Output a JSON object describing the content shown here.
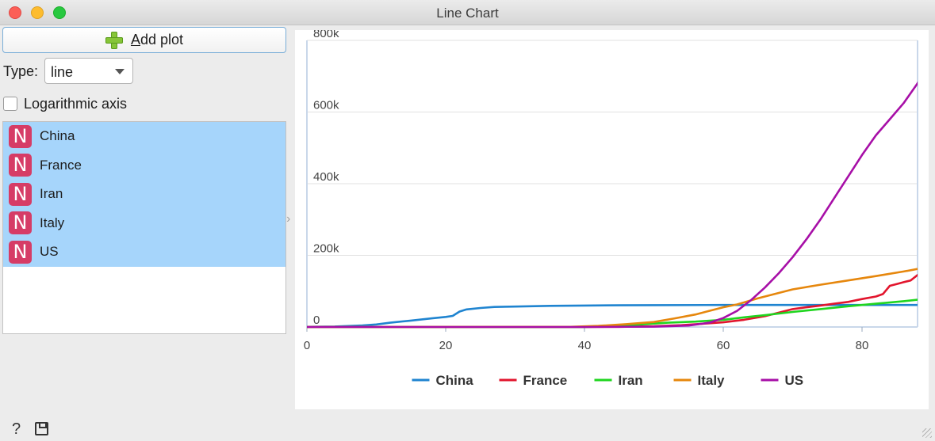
{
  "window": {
    "title": "Line Chart"
  },
  "controls": {
    "add_plot_label": "Add plot",
    "add_plot_mnemonic": "A",
    "add_plot_rest": "dd plot",
    "type_label": "Type:",
    "type_value": "line",
    "log_axis_label": "Logarithmic axis",
    "log_axis_checked": false
  },
  "variables": [
    {
      "badge": "N",
      "name": "China"
    },
    {
      "badge": "N",
      "name": "France"
    },
    {
      "badge": "N",
      "name": "Iran"
    },
    {
      "badge": "N",
      "name": "Italy"
    },
    {
      "badge": "N",
      "name": "US"
    }
  ],
  "chart_data": {
    "type": "line",
    "title": "",
    "xlabel": "",
    "ylabel": "",
    "xlim": [
      0,
      88
    ],
    "ylim": [
      0,
      800000
    ],
    "x_ticks": [
      0,
      20,
      40,
      60,
      80
    ],
    "y_ticks": [
      0,
      200000,
      400000,
      600000,
      800000
    ],
    "x_tick_labels": [
      "0",
      "20",
      "40",
      "60",
      "80"
    ],
    "y_tick_labels": [
      "0",
      "200k",
      "400k",
      "600k",
      "800k"
    ],
    "grid": "horizontal",
    "legend_position": "bottom",
    "series": [
      {
        "name": "China",
        "color": "#1f84d0",
        "points": [
          [
            0,
            550
          ],
          [
            4,
            1400
          ],
          [
            8,
            4500
          ],
          [
            10,
            7000
          ],
          [
            12,
            12000
          ],
          [
            15,
            18000
          ],
          [
            18,
            24000
          ],
          [
            20,
            28000
          ],
          [
            21,
            31000
          ],
          [
            22,
            43000
          ],
          [
            23,
            49000
          ],
          [
            25,
            53000
          ],
          [
            27,
            56000
          ],
          [
            30,
            57000
          ],
          [
            35,
            59000
          ],
          [
            40,
            60000
          ],
          [
            45,
            60500
          ],
          [
            50,
            61000
          ],
          [
            60,
            61500
          ],
          [
            70,
            61500
          ],
          [
            80,
            61500
          ],
          [
            88,
            61500
          ]
        ]
      },
      {
        "name": "France",
        "color": "#e2152d",
        "points": [
          [
            0,
            0
          ],
          [
            40,
            100
          ],
          [
            45,
            500
          ],
          [
            50,
            2000
          ],
          [
            54,
            5000
          ],
          [
            57,
            9000
          ],
          [
            60,
            13000
          ],
          [
            63,
            20000
          ],
          [
            66,
            30000
          ],
          [
            68,
            40000
          ],
          [
            70,
            50000
          ],
          [
            72,
            55000
          ],
          [
            74,
            60000
          ],
          [
            76,
            65000
          ],
          [
            78,
            70000
          ],
          [
            80,
            78000
          ],
          [
            82,
            85000
          ],
          [
            83,
            92000
          ],
          [
            84,
            115000
          ],
          [
            85,
            120000
          ],
          [
            86,
            125000
          ],
          [
            87,
            130000
          ],
          [
            88,
            145000
          ],
          [
            89,
            150000
          ]
        ]
      },
      {
        "name": "Iran",
        "color": "#1fd51f",
        "points": [
          [
            0,
            0
          ],
          [
            40,
            100
          ],
          [
            44,
            2000
          ],
          [
            48,
            7000
          ],
          [
            52,
            12000
          ],
          [
            56,
            15000
          ],
          [
            60,
            20000
          ],
          [
            63,
            27000
          ],
          [
            66,
            33000
          ],
          [
            70,
            42000
          ],
          [
            74,
            50000
          ],
          [
            78,
            58000
          ],
          [
            82,
            65000
          ],
          [
            86,
            72000
          ],
          [
            88,
            76000
          ],
          [
            89,
            78000
          ]
        ]
      },
      {
        "name": "Italy",
        "color": "#e6870d",
        "points": [
          [
            0,
            0
          ],
          [
            38,
            500
          ],
          [
            42,
            3000
          ],
          [
            46,
            8000
          ],
          [
            50,
            14000
          ],
          [
            53,
            24000
          ],
          [
            56,
            35000
          ],
          [
            58,
            45000
          ],
          [
            60,
            55000
          ],
          [
            62,
            63000
          ],
          [
            65,
            80000
          ],
          [
            68,
            95000
          ],
          [
            70,
            105000
          ],
          [
            74,
            118000
          ],
          [
            78,
            130000
          ],
          [
            82,
            142000
          ],
          [
            86,
            155000
          ],
          [
            88,
            162000
          ],
          [
            89,
            165000
          ]
        ]
      },
      {
        "name": "US",
        "color": "#a70fa7",
        "points": [
          [
            0,
            0
          ],
          [
            40,
            0
          ],
          [
            50,
            800
          ],
          [
            55,
            4000
          ],
          [
            58,
            12000
          ],
          [
            60,
            25000
          ],
          [
            62,
            45000
          ],
          [
            64,
            75000
          ],
          [
            66,
            110000
          ],
          [
            68,
            150000
          ],
          [
            70,
            195000
          ],
          [
            72,
            245000
          ],
          [
            74,
            300000
          ],
          [
            76,
            360000
          ],
          [
            78,
            420000
          ],
          [
            80,
            480000
          ],
          [
            82,
            535000
          ],
          [
            84,
            580000
          ],
          [
            86,
            625000
          ],
          [
            88,
            680000
          ],
          [
            89,
            715000
          ]
        ]
      }
    ]
  }
}
